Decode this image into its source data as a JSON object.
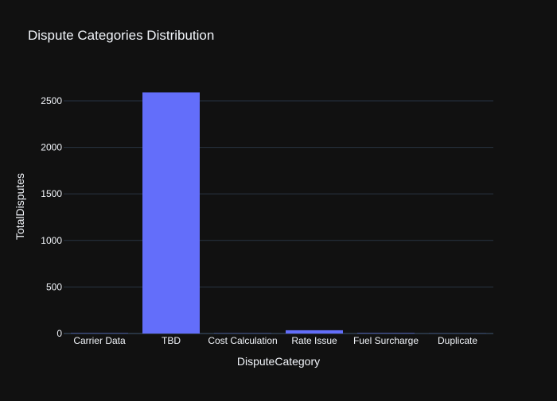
{
  "chart_data": {
    "type": "bar",
    "title": "Dispute Categories Distribution",
    "xlabel": "DisputeCategory",
    "ylabel": "TotalDisputes",
    "categories": [
      "Carrier Data",
      "TBD",
      "Cost Calculation",
      "Rate Issue",
      "Fuel Surcharge",
      "Duplicate"
    ],
    "values": [
      3,
      2590,
      2,
      35,
      4,
      1
    ],
    "ylim": [
      0,
      2730
    ],
    "yticks": [
      0,
      500,
      1000,
      1500,
      2000,
      2500
    ],
    "grid": true,
    "legend": "none",
    "colors": {
      "background": "#111111",
      "bar": "#636efa",
      "grid": "#283442",
      "text": "#f2f5fa"
    }
  }
}
